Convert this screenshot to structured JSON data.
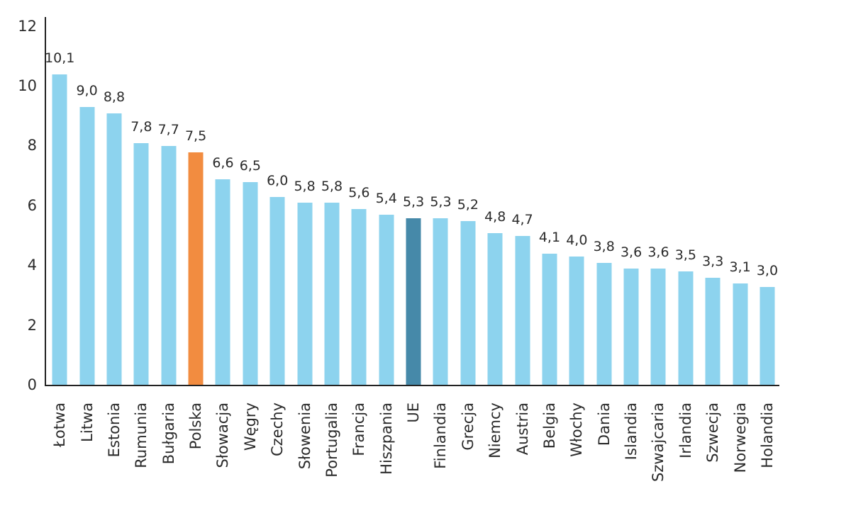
{
  "chart_data": {
    "type": "bar",
    "title": "",
    "xlabel": "",
    "ylabel": "",
    "ylim": [
      0,
      12
    ],
    "yticks": [
      0,
      2,
      4,
      6,
      8,
      10,
      12
    ],
    "grid": false,
    "legend_position": "none",
    "decimal_separator": ",",
    "categories": [
      "Łotwa",
      "Litwa",
      "Estonia",
      "Rumunia",
      "Bułgaria",
      "Polska",
      "Słowacja",
      "Węgry",
      "Czechy",
      "Słowenia",
      "Portugalia",
      "Francja",
      "Hiszpania",
      "UE",
      "Finlandia",
      "Grecja",
      "Niemcy",
      "Austria",
      "Belgia",
      "Włochy",
      "Dania",
      "Islandia",
      "Szwajcaria",
      "Irlandia",
      "Szwecja",
      "Norwegia",
      "Holandia"
    ],
    "values": [
      10.1,
      9.0,
      8.8,
      7.8,
      7.7,
      7.5,
      6.6,
      6.5,
      6.0,
      5.8,
      5.8,
      5.6,
      5.4,
      5.3,
      5.3,
      5.2,
      4.8,
      4.7,
      4.1,
      4.0,
      3.8,
      3.6,
      3.6,
      3.5,
      3.3,
      3.1,
      3.0
    ],
    "value_labels": [
      "10,1",
      "9,0",
      "8,8",
      "7,8",
      "7,7",
      "7,5",
      "6,6",
      "6,5",
      "6,0",
      "5,8",
      "5,8",
      "5,6",
      "5,4",
      "5,3",
      "5,3",
      "5,2",
      "4,8",
      "4,7",
      "4,1",
      "4,0",
      "3,8",
      "3,6",
      "3,6",
      "3,5",
      "3,3",
      "3,1",
      "3,0"
    ],
    "highlighted_category": "Polska",
    "reference_category": "UE",
    "colors": {
      "default_bar": "#8DD3EE",
      "highlighted_bar": "#F28C40",
      "reference_bar": "#4689A9",
      "axis": "#222222",
      "text": "#2B2B2B"
    }
  }
}
